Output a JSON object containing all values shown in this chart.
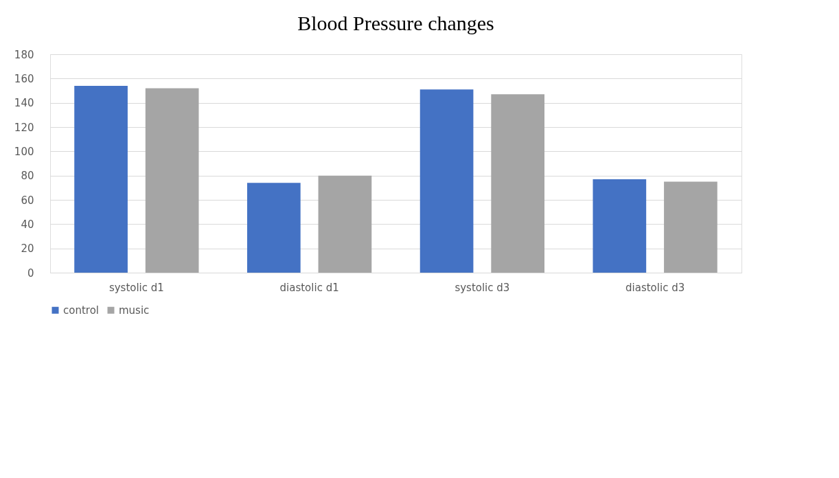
{
  "chart_data": {
    "type": "bar",
    "title": "Blood Pressure changes",
    "categories": [
      "systolic d1",
      "diastolic d1",
      "systolic  d3",
      "diastolic d3"
    ],
    "series": [
      {
        "name": "control",
        "color": "#4472c4",
        "values": [
          154,
          74,
          151,
          77
        ]
      },
      {
        "name": "music",
        "color": "#a5a5a5",
        "values": [
          152,
          80,
          147,
          75
        ]
      }
    ],
    "ylim": [
      0,
      180
    ],
    "yticks": [
      0,
      20,
      40,
      60,
      80,
      100,
      120,
      140,
      160,
      180
    ],
    "grid": "y",
    "legend": "bottom"
  }
}
